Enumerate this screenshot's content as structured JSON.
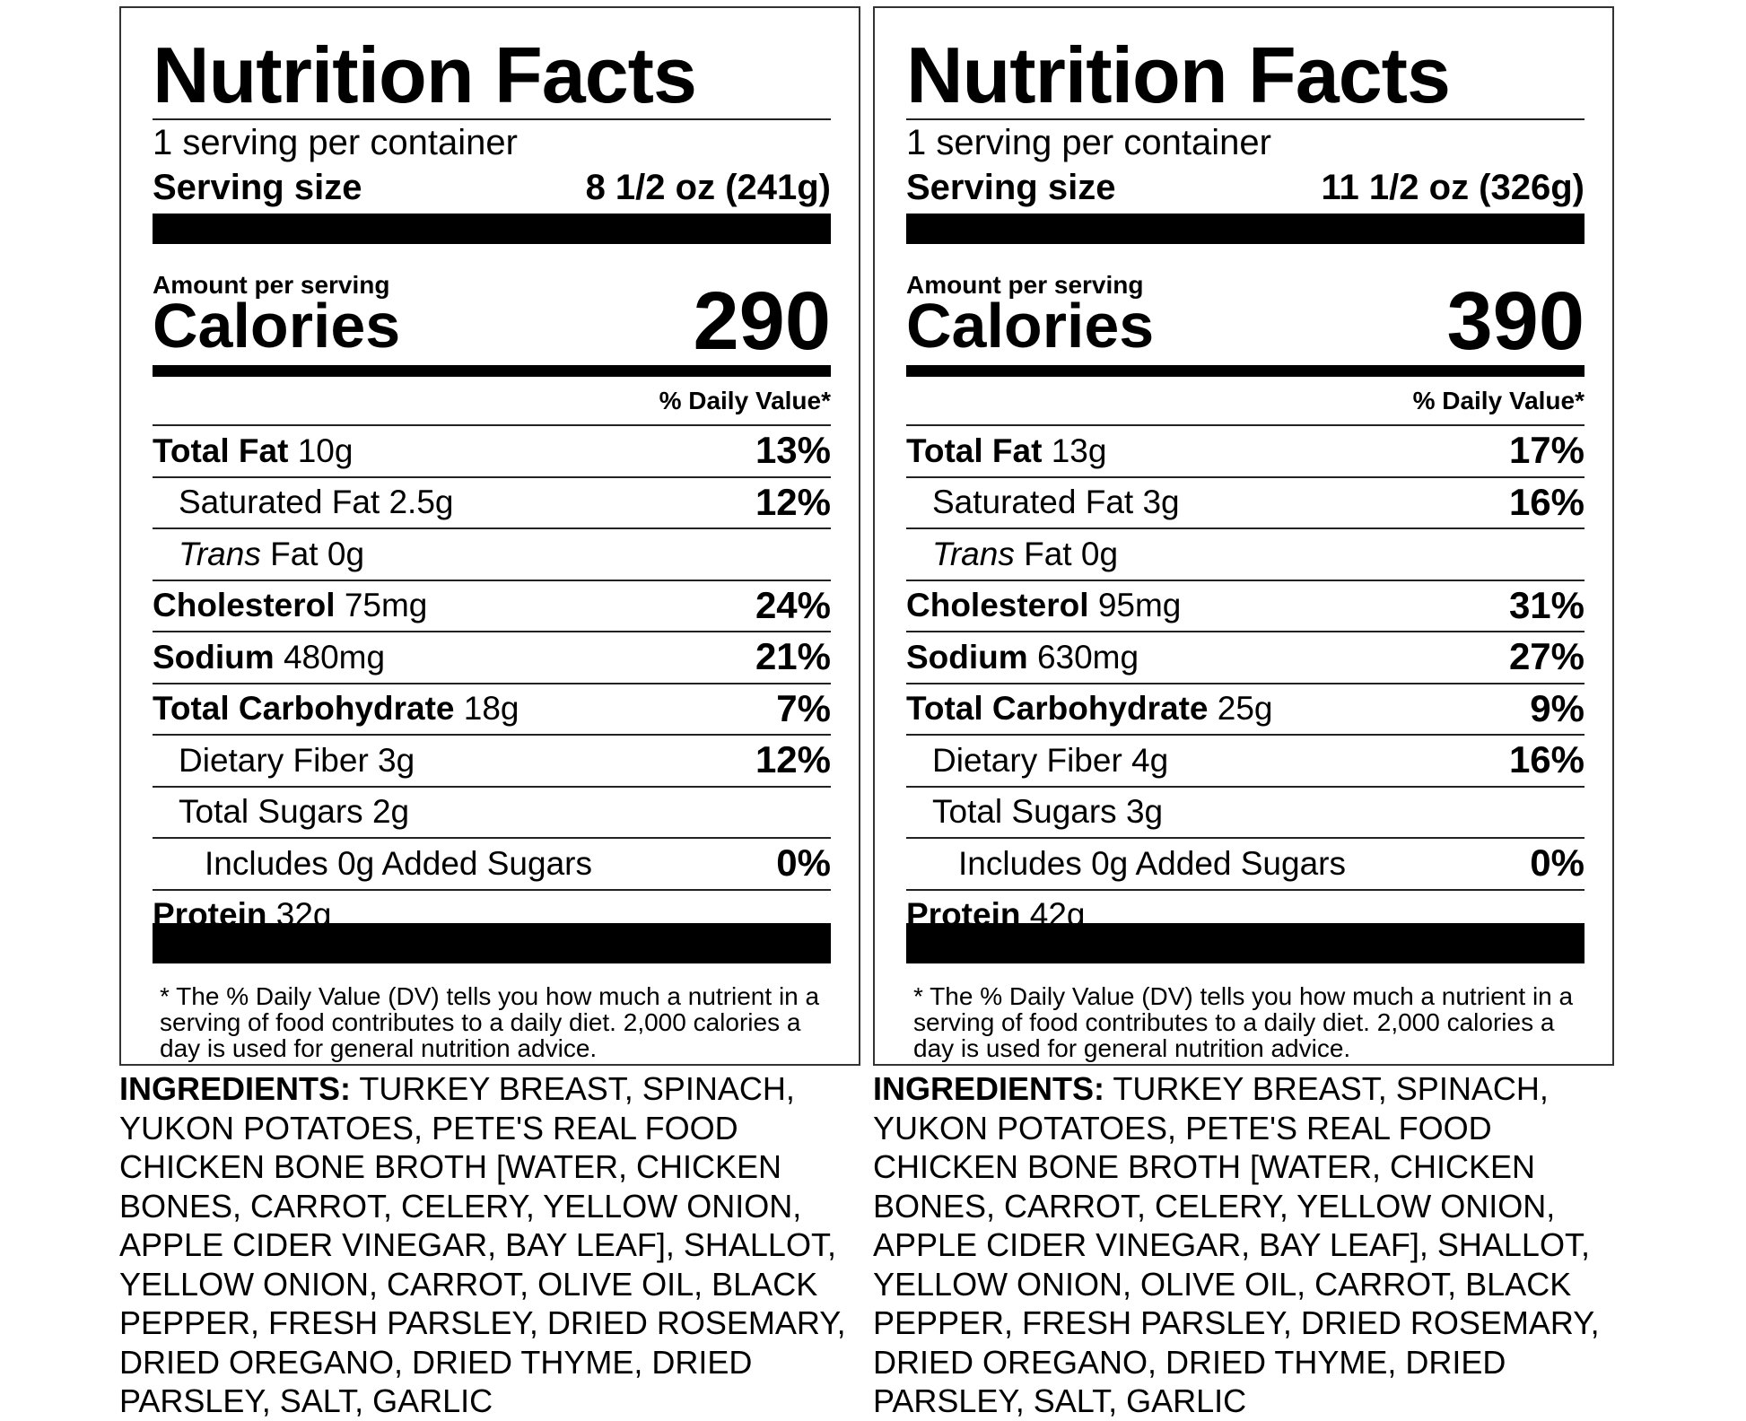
{
  "labels": [
    {
      "title": "Nutrition Facts",
      "servings_per_container": "1 serving per container",
      "serving_size_label": "Serving size",
      "serving_size_value": "8 1/2 oz (241g)",
      "amount_per_serving": "Amount per serving",
      "calories_label": "Calories",
      "calories_value": "290",
      "daily_value_header": "% Daily Value*",
      "nutrients": [
        {
          "bold": "Total Fat",
          "rest": " 10g",
          "pct": "13%"
        },
        {
          "bold": "",
          "rest": "Saturated Fat 2.5g",
          "pct": "12%"
        },
        {
          "italic": "Trans",
          "rest": " Fat 0g",
          "pct": ""
        },
        {
          "bold": "Cholesterol",
          "rest": " 75mg",
          "pct": "24%"
        },
        {
          "bold": "Sodium",
          "rest": " 480mg",
          "pct": "21%"
        },
        {
          "bold": "Total Carbohydrate",
          "rest": " 18g",
          "pct": "7%"
        },
        {
          "bold": "",
          "rest": "Dietary Fiber 3g",
          "pct": "12%"
        },
        {
          "bold": "",
          "rest": "Total Sugars 2g",
          "pct": ""
        },
        {
          "bold": "",
          "rest": "Includes 0g Added Sugars",
          "pct": "0%"
        },
        {
          "bold": "Protein",
          "rest": " 32g",
          "pct": ""
        }
      ],
      "footnote": "* The % Daily Value (DV) tells you how much a nutrient in a serving of food contributes to a daily diet. 2,000 calories a day is used for general nutrition advice.",
      "ingredients_label": "INGREDIENTS:",
      "ingredients_text": " TURKEY BREAST, SPINACH, YUKON POTATOES, PETE'S REAL FOOD CHICKEN BONE BROTH [WATER, CHICKEN BONES, CARROT, CELERY, YELLOW ONION, APPLE CIDER VINEGAR, BAY LEAF], SHALLOT, YELLOW ONION, CARROT, OLIVE OIL, BLACK PEPPER, FRESH PARSLEY, DRIED ROSEMARY, DRIED OREGANO, DRIED THYME, DRIED PARSLEY, SALT, GARLIC"
    },
    {
      "title": "Nutrition Facts",
      "servings_per_container": "1 serving per container",
      "serving_size_label": "Serving size",
      "serving_size_value": "11 1/2 oz (326g)",
      "amount_per_serving": "Amount per serving",
      "calories_label": "Calories",
      "calories_value": "390",
      "daily_value_header": "% Daily Value*",
      "nutrients": [
        {
          "bold": "Total Fat",
          "rest": " 13g",
          "pct": "17%"
        },
        {
          "bold": "",
          "rest": "Saturated Fat 3g",
          "pct": "16%"
        },
        {
          "italic": "Trans",
          "rest": " Fat 0g",
          "pct": ""
        },
        {
          "bold": "Cholesterol",
          "rest": " 95mg",
          "pct": "31%"
        },
        {
          "bold": "Sodium",
          "rest": " 630mg",
          "pct": "27%"
        },
        {
          "bold": "Total Carbohydrate",
          "rest": " 25g",
          "pct": "9%"
        },
        {
          "bold": "",
          "rest": "Dietary Fiber 4g",
          "pct": "16%"
        },
        {
          "bold": "",
          "rest": "Total Sugars 3g",
          "pct": ""
        },
        {
          "bold": "",
          "rest": "Includes 0g Added Sugars",
          "pct": "0%"
        },
        {
          "bold": "Protein",
          "rest": " 42g",
          "pct": ""
        }
      ],
      "footnote": "* The % Daily Value (DV) tells you how much a nutrient in a serving of food contributes to a daily diet. 2,000 calories a day is used for general nutrition advice.",
      "ingredients_label": "INGREDIENTS:",
      "ingredients_text": " TURKEY BREAST, SPINACH, YUKON POTATOES, PETE'S REAL FOOD CHICKEN BONE BROTH [WATER, CHICKEN BONES, CARROT, CELERY, YELLOW ONION, APPLE CIDER VINEGAR, BAY LEAF], SHALLOT, YELLOW ONION, OLIVE OIL, CARROT, BLACK PEPPER, FRESH PARSLEY, DRIED ROSEMARY, DRIED OREGANO, DRIED THYME, DRIED PARSLEY, SALT, GARLIC"
    }
  ]
}
